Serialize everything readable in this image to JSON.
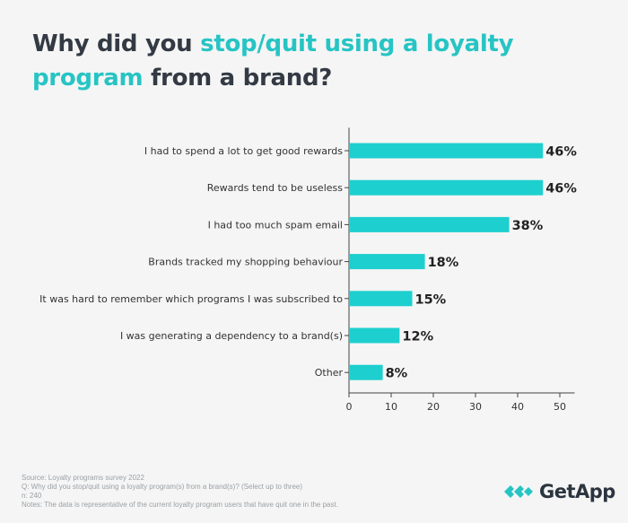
{
  "title": {
    "part1": "Why did you ",
    "accent1": "stop/quit using a loyalty",
    "accent2": "program",
    "part2": " from a brand?"
  },
  "chart_data": {
    "type": "bar",
    "orientation": "horizontal",
    "categories": [
      "I had to spend a lot to get good rewards",
      "Rewards tend to be useless",
      "I had too much spam email",
      "Brands tracked my shopping behaviour",
      "It was hard to remember which programs I was subscribed to",
      "I was generating a dependency to a brand(s)",
      "Other"
    ],
    "values": [
      46,
      46,
      38,
      18,
      15,
      12,
      8
    ],
    "value_labels": [
      "46%",
      "46%",
      "38%",
      "18%",
      "15%",
      "12%",
      "8%"
    ],
    "xlim": [
      0,
      55
    ],
    "xticks": [
      0,
      10,
      20,
      30,
      40,
      50
    ],
    "bar_color": "#1ecfcf",
    "grid": false
  },
  "footnotes": {
    "source": "Source: Loyalty programs survey 2022",
    "question": "Q: Why did you stop/quit using a loyalty program(s) from a brand(s)? (Select up to three)",
    "n": "n: 240",
    "notes": "Notes: The data is representative of the current loyalty program users that have quit one in the past."
  },
  "logo": {
    "text": "GetApp"
  },
  "colors": {
    "background": "#f5f5f5",
    "title": "#333a44",
    "accent": "#27c4c4",
    "bar": "#1ecfcf"
  }
}
